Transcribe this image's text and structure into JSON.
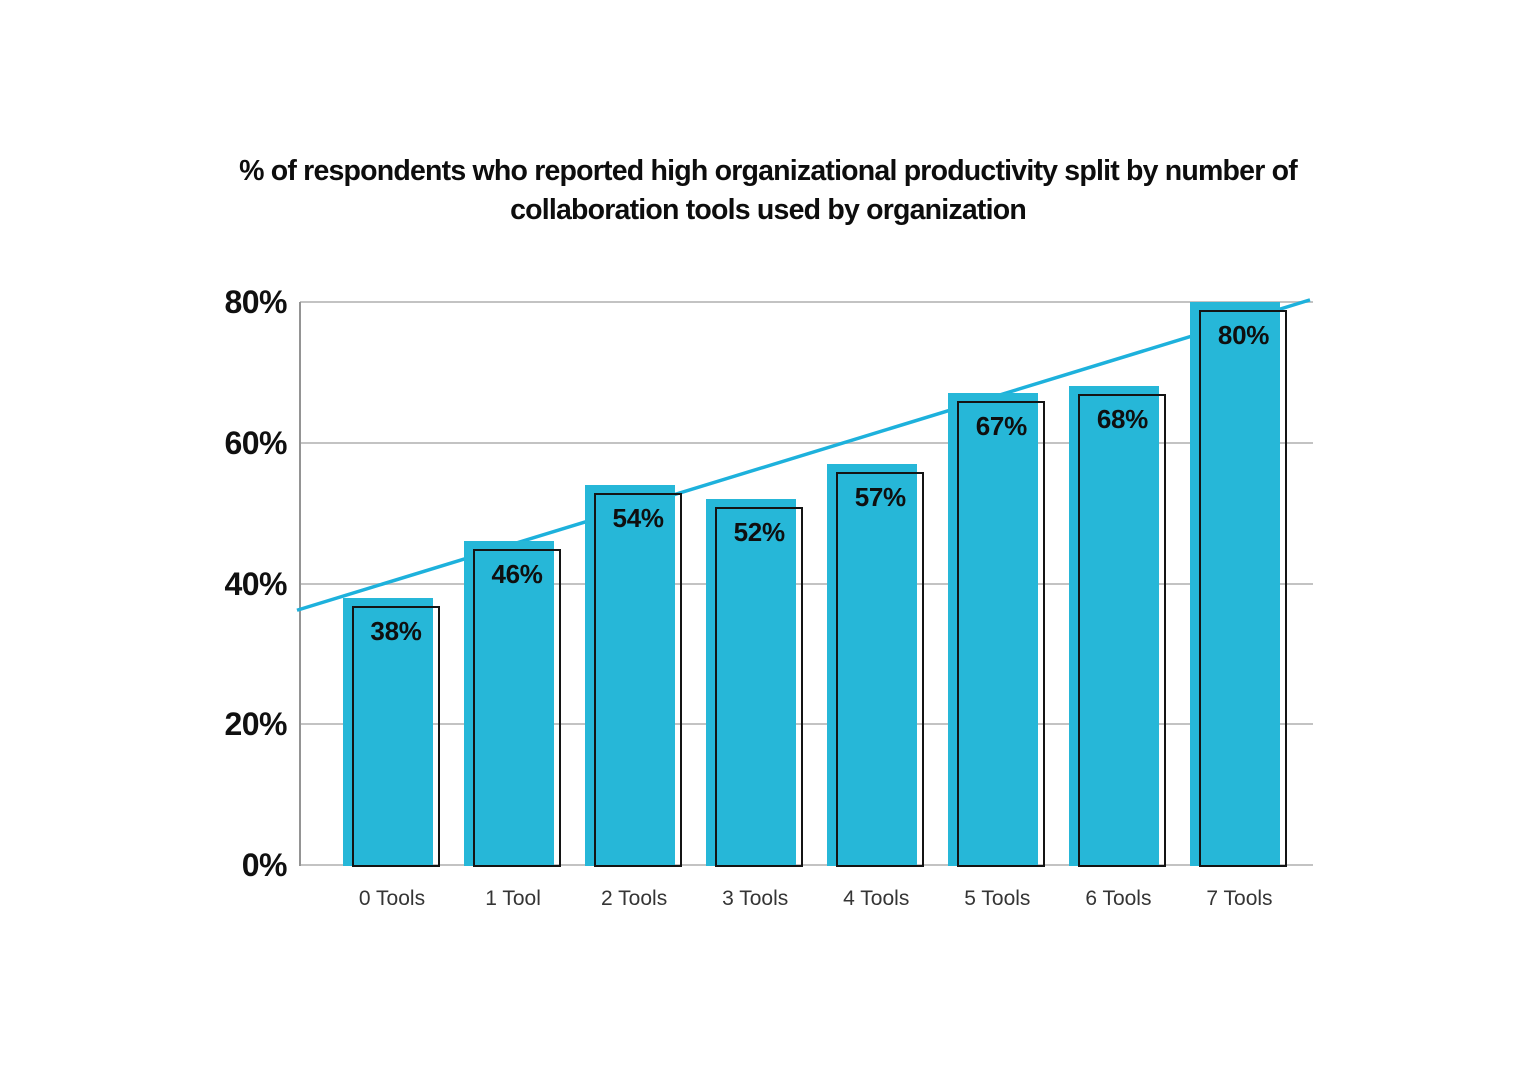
{
  "title": "% of respondents who reported high organizational productivity split by number of collaboration tools used by organization",
  "chart_data": {
    "type": "bar",
    "title": "% of respondents who reported high organizational productivity split by number of collaboration tools used by organization",
    "categories": [
      "0 Tools",
      "1 Tool",
      "2 Tools",
      "3 Tools",
      "4 Tools",
      "5 Tools",
      "6 Tools",
      "7 Tools"
    ],
    "values": [
      38,
      46,
      54,
      52,
      57,
      67,
      68,
      80
    ],
    "value_labels": [
      "38%",
      "46%",
      "54%",
      "52%",
      "57%",
      "67%",
      "68%",
      "80%"
    ],
    "xlabel": "",
    "ylabel": "",
    "ylim": [
      0,
      80
    ],
    "y_ticks": [
      {
        "value": 0,
        "label": "0%"
      },
      {
        "value": 20,
        "label": "20%"
      },
      {
        "value": 40,
        "label": "40%"
      },
      {
        "value": 60,
        "label": "60%"
      },
      {
        "value": 80,
        "label": "80%"
      }
    ],
    "grid": "horizontal",
    "legend": "none",
    "trend_line": {
      "start_pct": 36.2,
      "end_pct": 80.3
    },
    "colors": {
      "bar_fill": "#26b7d8",
      "bar_outline": "#141414",
      "trend_line": "#1db1dc",
      "gridline": "#c3c3c3",
      "axis_line": "#949494",
      "value_label": "#0f0f0f",
      "y_tick_label": "#101010",
      "x_tick_label": "#353535",
      "title": "#0d0d0d",
      "background": "#ffffff"
    }
  }
}
